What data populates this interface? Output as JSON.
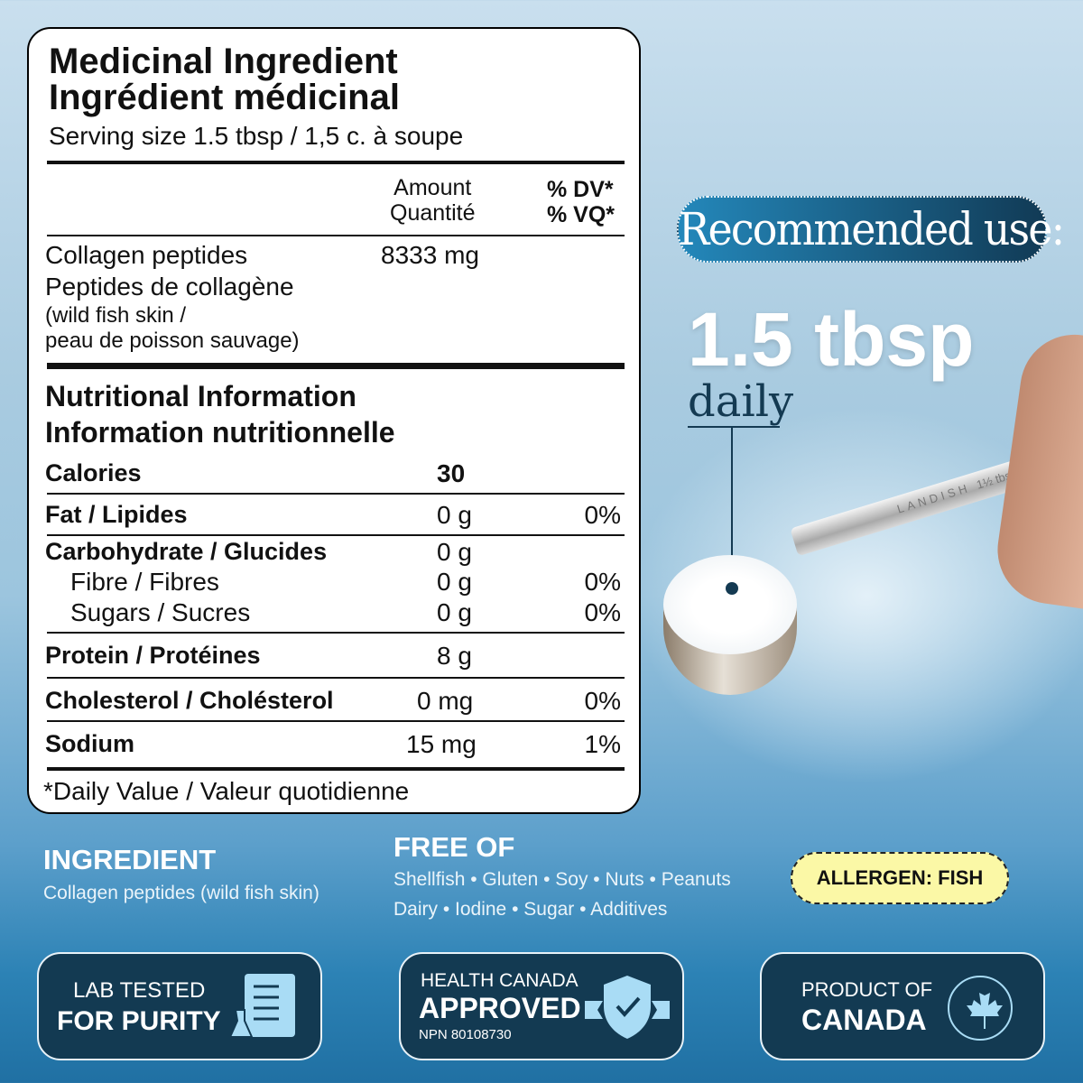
{
  "label": {
    "title_en": "Medicinal Ingredient",
    "title_fr": "Ingrédient médicinal",
    "serving": "Serving size 1.5 tbsp / 1,5 c. à soupe",
    "amount_en": "Amount",
    "amount_fr": "Quantité",
    "dv_en": "% DV*",
    "dv_fr": "% VQ*",
    "ingredient_en": "Collagen peptides",
    "ingredient_fr": "Peptides de collagène",
    "ingredient_amount": "8333 mg",
    "source_en": "(wild fish skin /",
    "source_fr": "peau de poisson sauvage)",
    "nutri_en": "Nutritional Information",
    "nutri_fr": "Information nutritionnelle",
    "calories_label": "Calories",
    "calories_value": "30",
    "rows": [
      {
        "label": "Fat / Lipides",
        "amount": "0 g",
        "dv": "0%"
      },
      {
        "label": "Carbohydrate / Glucides",
        "amount": "0 g",
        "dv": ""
      },
      {
        "label": "Fibre / Fibres",
        "amount": "0 g",
        "dv": "0%"
      },
      {
        "label": "Sugars / Sucres",
        "amount": "0 g",
        "dv": "0%"
      },
      {
        "label": "Protein / Protéines",
        "amount": "8 g",
        "dv": ""
      },
      {
        "label": "Cholesterol / Cholésterol",
        "amount": "0 mg",
        "dv": "0%"
      },
      {
        "label": "Sodium",
        "amount": "15 mg",
        "dv": "1%"
      }
    ],
    "footnote": "*Daily Value / Valeur quotidienne"
  },
  "recommended": {
    "heading": "Recommended use:",
    "dose": "1.5 tbsp",
    "frequency": "daily"
  },
  "spoon": {
    "engraving": "LANDISH",
    "size_mark": "1½ tbsp"
  },
  "ingredient": {
    "heading": "INGREDIENT",
    "text": "Collagen peptides (wild fish skin)"
  },
  "free_of": {
    "heading": "FREE OF",
    "line1": "Shellfish • Gluten • Soy • Nuts • Peanuts",
    "line2": "Dairy • Iodine • Sugar • Additives"
  },
  "allergen": "ALLERGEN: FISH",
  "badges": [
    {
      "line1": "LAB TESTED",
      "line2": "FOR PURITY",
      "icon": "lab-checklist-icon"
    },
    {
      "line1": "HEALTH CANADA",
      "line2": "APPROVED",
      "line3": "NPN 80108730",
      "icon": "shield-check-icon"
    },
    {
      "line1": "PRODUCT OF",
      "line2": "CANADA",
      "icon": "maple-leaf-icon"
    }
  ],
  "colors": {
    "navy": "#133a52",
    "accent": "#a9dcf5",
    "allergen": "#fbf8a6"
  }
}
